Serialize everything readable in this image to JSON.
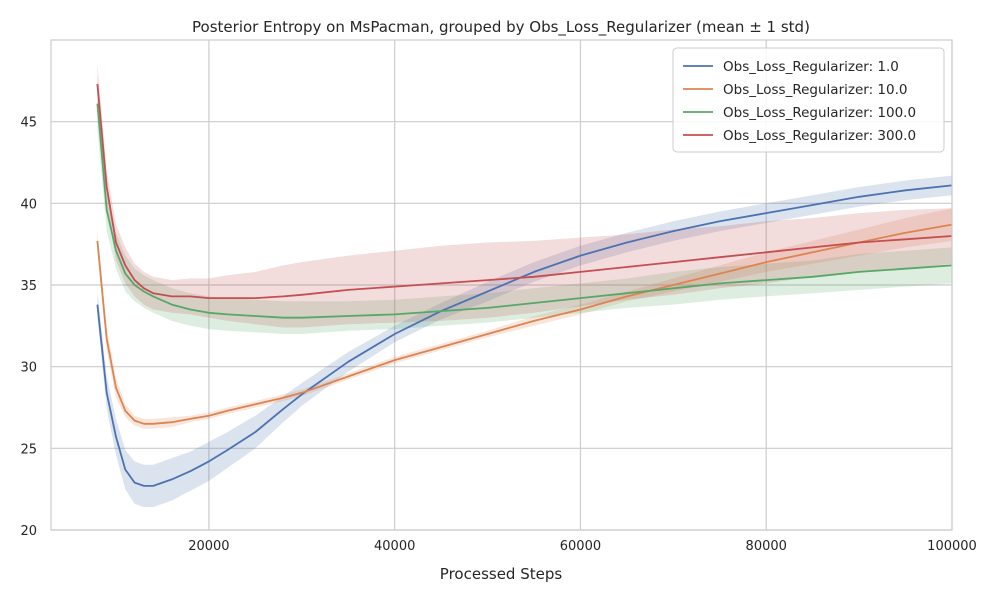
{
  "chart_data": {
    "type": "line",
    "title": "Posterior Entropy on MsPacman, grouped by Obs_Loss_Regularizer (mean ± 1 std)",
    "xlabel": "Processed Steps",
    "ylabel": "",
    "xlim": [
      3000,
      100000
    ],
    "ylim": [
      20,
      50
    ],
    "xticks": [
      20000,
      40000,
      60000,
      80000,
      100000
    ],
    "yticks": [
      20,
      25,
      30,
      35,
      40,
      45
    ],
    "grid": true,
    "legend_position": "top-right",
    "x": [
      8000,
      9000,
      10000,
      11000,
      12000,
      13000,
      14000,
      16000,
      18000,
      20000,
      22000,
      25000,
      28000,
      30000,
      35000,
      40000,
      45000,
      50000,
      55000,
      60000,
      65000,
      70000,
      75000,
      80000,
      85000,
      90000,
      95000,
      100000
    ],
    "series": [
      {
        "name": "Obs_Loss_Regularizer: 1.0",
        "color": "#4c72b0",
        "values": [
          33.8,
          28.4,
          25.7,
          23.7,
          22.9,
          22.7,
          22.7,
          23.1,
          23.6,
          24.2,
          24.9,
          26.0,
          27.4,
          28.3,
          30.3,
          32.0,
          33.4,
          34.6,
          35.8,
          36.8,
          37.6,
          38.3,
          38.9,
          39.4,
          39.9,
          40.4,
          40.8,
          41.1
        ],
        "std": [
          0.8,
          1.0,
          1.1,
          1.2,
          1.3,
          1.3,
          1.3,
          1.3,
          1.2,
          1.2,
          1.1,
          1.0,
          0.8,
          0.7,
          0.6,
          0.5,
          0.5,
          0.6,
          0.6,
          0.6,
          0.6,
          0.6,
          0.6,
          0.6,
          0.6,
          0.6,
          0.6,
          0.6
        ]
      },
      {
        "name": "Obs_Loss_Regularizer: 10.0",
        "color": "#dd8452",
        "values": [
          37.7,
          31.7,
          28.7,
          27.3,
          26.7,
          26.5,
          26.5,
          26.6,
          26.8,
          27.0,
          27.3,
          27.7,
          28.1,
          28.4,
          29.4,
          30.4,
          31.2,
          32.0,
          32.8,
          33.5,
          34.3,
          35.0,
          35.7,
          36.4,
          37.0,
          37.6,
          38.2,
          38.7
        ],
        "std": [
          0.6,
          0.7,
          0.6,
          0.4,
          0.3,
          0.3,
          0.3,
          0.3,
          0.2,
          0.2,
          0.2,
          0.2,
          0.2,
          0.2,
          0.2,
          0.2,
          0.2,
          0.2,
          0.3,
          0.3,
          0.3,
          0.4,
          0.5,
          0.6,
          0.7,
          0.8,
          0.9,
          1.0
        ]
      },
      {
        "name": "Obs_Loss_Regularizer: 100.0",
        "color": "#55a868",
        "values": [
          46.1,
          39.6,
          37.1,
          35.7,
          35.0,
          34.6,
          34.3,
          33.8,
          33.5,
          33.3,
          33.2,
          33.1,
          33.0,
          33.0,
          33.1,
          33.2,
          33.4,
          33.6,
          33.9,
          34.2,
          34.5,
          34.8,
          35.1,
          35.3,
          35.5,
          35.8,
          36.0,
          36.2
        ],
        "std": [
          1.6,
          1.3,
          1.1,
          1.1,
          1.0,
          1.0,
          1.0,
          1.0,
          1.0,
          1.0,
          1.0,
          1.0,
          1.0,
          1.0,
          0.9,
          0.9,
          0.9,
          0.9,
          0.9,
          0.9,
          0.9,
          1.0,
          1.0,
          1.0,
          1.0,
          1.1,
          1.1,
          1.1
        ]
      },
      {
        "name": "Obs_Loss_Regularizer: 300.0",
        "color": "#c44e52",
        "values": [
          47.3,
          41.0,
          37.6,
          36.2,
          35.3,
          34.8,
          34.5,
          34.3,
          34.3,
          34.2,
          34.2,
          34.2,
          34.3,
          34.4,
          34.7,
          34.9,
          35.1,
          35.3,
          35.5,
          35.8,
          36.1,
          36.4,
          36.7,
          37.0,
          37.3,
          37.6,
          37.8,
          38.0
        ],
        "std": [
          1.2,
          1.0,
          1.1,
          1.1,
          1.0,
          1.0,
          1.0,
          1.0,
          1.1,
          1.2,
          1.4,
          1.6,
          1.9,
          2.0,
          2.1,
          2.2,
          2.3,
          2.3,
          2.2,
          2.1,
          2.0,
          2.0,
          1.9,
          1.9,
          1.8,
          1.8,
          1.8,
          1.7
        ]
      }
    ]
  }
}
